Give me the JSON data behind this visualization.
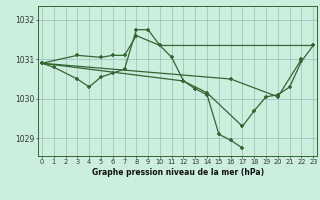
{
  "x": [
    0,
    1,
    2,
    3,
    4,
    5,
    6,
    7,
    8,
    9,
    10,
    11,
    12,
    13,
    14,
    15,
    16,
    17,
    18,
    19,
    20,
    21,
    22,
    23
  ],
  "series": [
    [
      1030.9,
      1030.8,
      null,
      1030.5,
      1030.3,
      1030.55,
      1030.65,
      1030.75,
      1031.75,
      1031.75,
      1031.35,
      1031.05,
      1030.45,
      1030.25,
      1030.1,
      1029.1,
      1028.95,
      1028.75,
      null,
      null,
      null,
      null,
      null,
      null
    ],
    [
      1030.9,
      null,
      null,
      1031.1,
      null,
      1031.05,
      1031.1,
      1031.1,
      1031.6,
      null,
      1031.35,
      null,
      null,
      null,
      null,
      null,
      null,
      null,
      null,
      null,
      null,
      null,
      null,
      1031.35
    ],
    [
      1030.9,
      null,
      null,
      null,
      null,
      null,
      null,
      null,
      null,
      null,
      null,
      null,
      1030.45,
      null,
      1030.15,
      null,
      null,
      1029.3,
      1029.7,
      1030.05,
      1030.1,
      1030.3,
      1030.95,
      1031.35
    ],
    [
      1030.9,
      null,
      null,
      null,
      null,
      null,
      null,
      null,
      null,
      null,
      null,
      null,
      null,
      null,
      null,
      null,
      1030.5,
      null,
      null,
      null,
      1030.05,
      null,
      1031.0,
      null
    ]
  ],
  "line_color": "#336633",
  "marker": "+",
  "markersize": 3.5,
  "linewidth": 0.9,
  "bg_color": "#cceedd",
  "grid_color": "#99bbbb",
  "title": "Graphe pression niveau de la mer (hPa)",
  "ylabel_ticks": [
    1029,
    1030,
    1031,
    1032
  ],
  "xlabel_ticks": [
    0,
    1,
    2,
    3,
    4,
    5,
    6,
    7,
    8,
    9,
    10,
    11,
    12,
    13,
    14,
    15,
    16,
    17,
    18,
    19,
    20,
    21,
    22,
    23
  ],
  "ylim": [
    1028.55,
    1032.35
  ],
  "xlim": [
    -0.3,
    23.3
  ]
}
